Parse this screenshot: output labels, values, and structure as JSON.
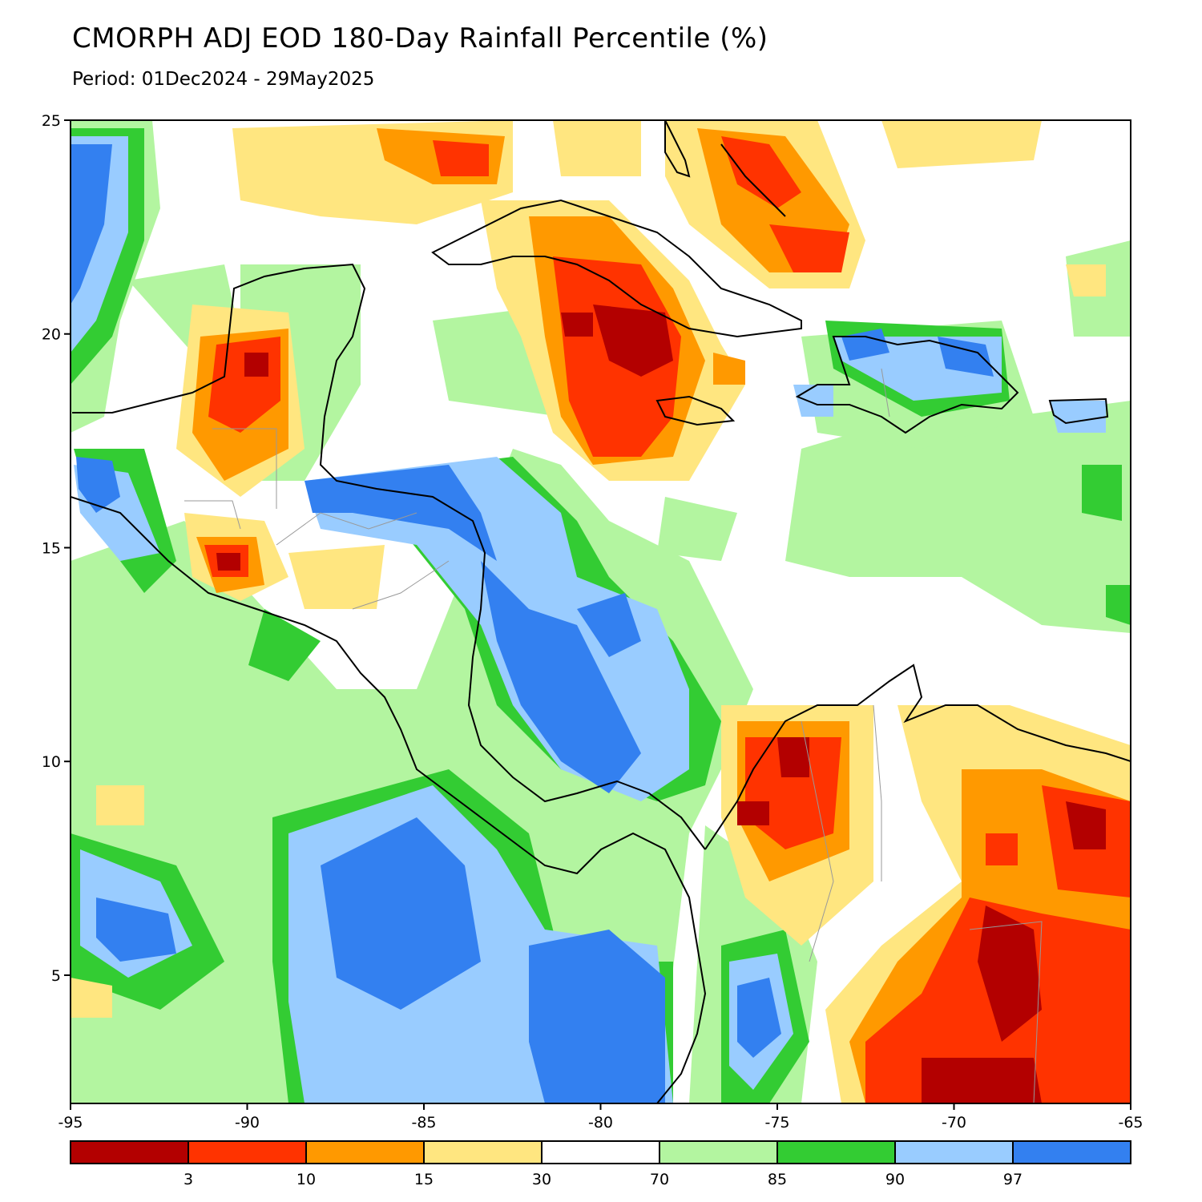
{
  "title": "CMORPH ADJ EOD 180-Day Rainfall Percentile (%)",
  "subtitle": "Period: 01Dec2024 - 29May2025",
  "axes": {
    "lon_ticks": [
      "-95",
      "-90",
      "-85",
      "-80",
      "-75",
      "-70",
      "-65"
    ],
    "lat_ticks": [
      "25",
      "20",
      "15",
      "10",
      "5"
    ]
  },
  "colorbar": {
    "bins": [
      {
        "color": "#b30000"
      },
      {
        "color": "#ff3300"
      },
      {
        "color": "#ff9900"
      },
      {
        "color": "#ffe680"
      },
      {
        "color": "#ffffff"
      },
      {
        "color": "#b3f5a0"
      },
      {
        "color": "#33cc33"
      },
      {
        "color": "#99ccff"
      },
      {
        "color": "#3380f0"
      }
    ],
    "labels": [
      "3",
      "10",
      "15",
      "30",
      "70",
      "85",
      "90",
      "97"
    ]
  },
  "colors": {
    "very_dry": "#b30000",
    "dry": "#ff3300",
    "moderately_dry": "#ff9900",
    "slightly_dry": "#ffe680",
    "normal": "#ffffff",
    "slightly_wet": "#b3f5a0",
    "wet": "#33cc33",
    "very_wet": "#99ccff",
    "extremely_wet": "#3380f0"
  }
}
